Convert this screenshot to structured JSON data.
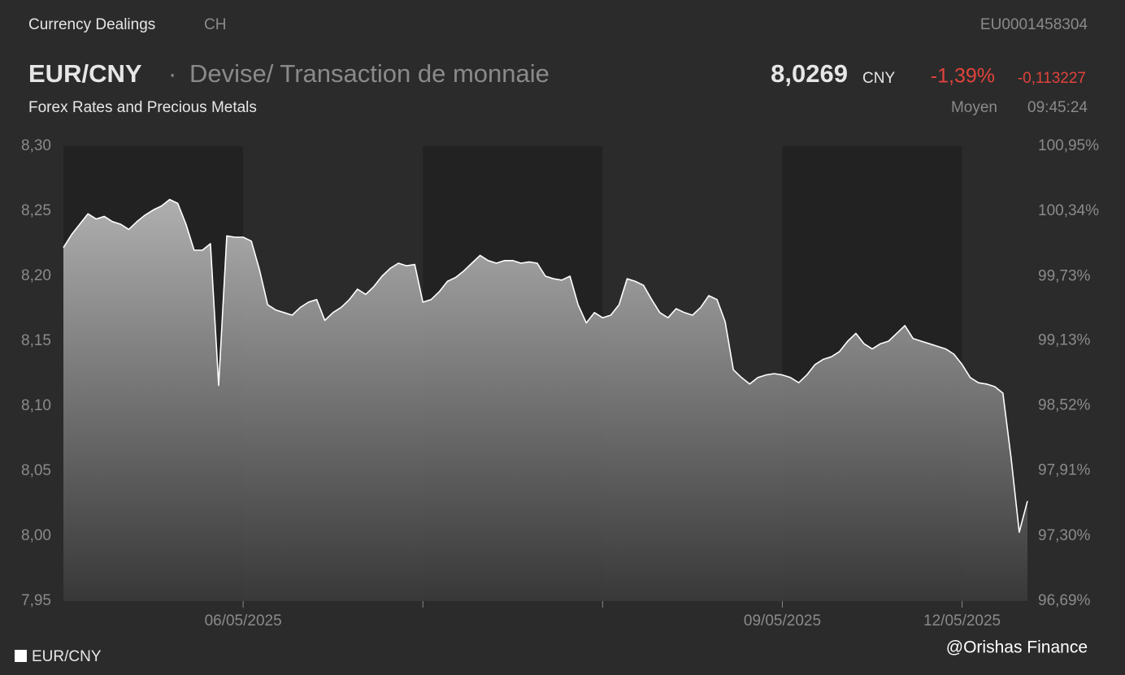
{
  "header": {
    "section": "Currency Dealings",
    "region": "CH",
    "isin": "EU0001458304",
    "pair": "EUR/CNY",
    "separator": "·",
    "description": "Devise/ Transaction de monnaie",
    "subtitle": "Forex Rates and Precious Metals",
    "price": "8,0269",
    "currency": "CNY",
    "change_percent": "-1,39%",
    "change": "-0,113227",
    "price_type": "Moyen",
    "time": "09:45:24"
  },
  "chart_data": {
    "type": "area",
    "categories": [
      null,
      null,
      null,
      null,
      null,
      null,
      null,
      null,
      null,
      null,
      null,
      null,
      null,
      null,
      null,
      null,
      null,
      null,
      null,
      null,
      null,
      null,
      "06/05/2025",
      null,
      null,
      null,
      null,
      null,
      null,
      null,
      null,
      null,
      null,
      null,
      null,
      null,
      null,
      null,
      null,
      null,
      null,
      null,
      null,
      null,
      null,
      null,
      null,
      null,
      null,
      null,
      null,
      null,
      null,
      null,
      null,
      null,
      null,
      null,
      null,
      null,
      null,
      null,
      null,
      null,
      null,
      null,
      null,
      null,
      null,
      null,
      null,
      null,
      null,
      null,
      null,
      null,
      null,
      null,
      null,
      null,
      null,
      null,
      null,
      null,
      null,
      null,
      null,
      null,
      "09/05/2025",
      null,
      null,
      null,
      null,
      null,
      null,
      null,
      null,
      null,
      null,
      null,
      null,
      null,
      null,
      null,
      null,
      null,
      null,
      null,
      null,
      null,
      "12/05/2025",
      null,
      null,
      null,
      null,
      null,
      null,
      null,
      null
    ],
    "series": [
      {
        "name": "EUR/CNY",
        "color": "#ffffff",
        "values": [
          8.222,
          8.232,
          8.24,
          8.248,
          8.244,
          8.246,
          8.242,
          8.24,
          8.236,
          8.242,
          8.247,
          8.251,
          8.254,
          8.259,
          8.256,
          8.24,
          8.22,
          8.22,
          8.225,
          8.116,
          8.231,
          8.23,
          8.23,
          8.227,
          8.205,
          8.178,
          8.174,
          8.172,
          8.17,
          8.176,
          8.18,
          8.182,
          8.166,
          8.172,
          8.176,
          8.182,
          8.19,
          8.186,
          8.192,
          8.2,
          8.206,
          8.21,
          8.208,
          8.209,
          8.18,
          8.182,
          8.188,
          8.196,
          8.199,
          8.204,
          8.21,
          8.216,
          8.212,
          8.21,
          8.212,
          8.212,
          8.21,
          8.211,
          8.21,
          8.2,
          8.198,
          8.197,
          8.2,
          8.178,
          8.164,
          8.172,
          8.168,
          8.17,
          8.178,
          8.198,
          8.196,
          8.193,
          8.182,
          8.172,
          8.168,
          8.175,
          8.172,
          8.17,
          8.176,
          8.185,
          8.182,
          8.165,
          8.128,
          8.122,
          8.117,
          8.122,
          8.124,
          8.125,
          8.124,
          8.122,
          8.118,
          8.124,
          8.132,
          8.136,
          8.138,
          8.142,
          8.15,
          8.156,
          8.148,
          8.144,
          8.148,
          8.15,
          8.156,
          8.162,
          8.152,
          8.15,
          8.148,
          8.146,
          8.144,
          8.14,
          8.132,
          8.122,
          8.118,
          8.117,
          8.115,
          8.11,
          8.06,
          8.003,
          8.027
        ]
      }
    ],
    "ylim": [
      7.95,
      8.3
    ],
    "yticks": [
      {
        "value": 7.95,
        "label": "7,95"
      },
      {
        "value": 8.0,
        "label": "8,00"
      },
      {
        "value": 8.05,
        "label": "8,05"
      },
      {
        "value": 8.1,
        "label": "8,10"
      },
      {
        "value": 8.15,
        "label": "8,15"
      },
      {
        "value": 8.2,
        "label": "8,20"
      },
      {
        "value": 8.25,
        "label": "8,25"
      },
      {
        "value": 8.3,
        "label": "8,30"
      }
    ],
    "y2lim": [
      96.69,
      100.95
    ],
    "y2ticks": [
      {
        "value": 96.69,
        "label": "96,69%"
      },
      {
        "value": 97.3,
        "label": "97,30%"
      },
      {
        "value": 97.91,
        "label": "97,91%"
      },
      {
        "value": 98.52,
        "label": "98,52%"
      },
      {
        "value": 99.13,
        "label": "99,13%"
      },
      {
        "value": 99.73,
        "label": "99,73%"
      },
      {
        "value": 100.34,
        "label": "100,34%"
      },
      {
        "value": 100.95,
        "label": "100,95%"
      }
    ]
  },
  "watermark": "@Orishas Finance"
}
